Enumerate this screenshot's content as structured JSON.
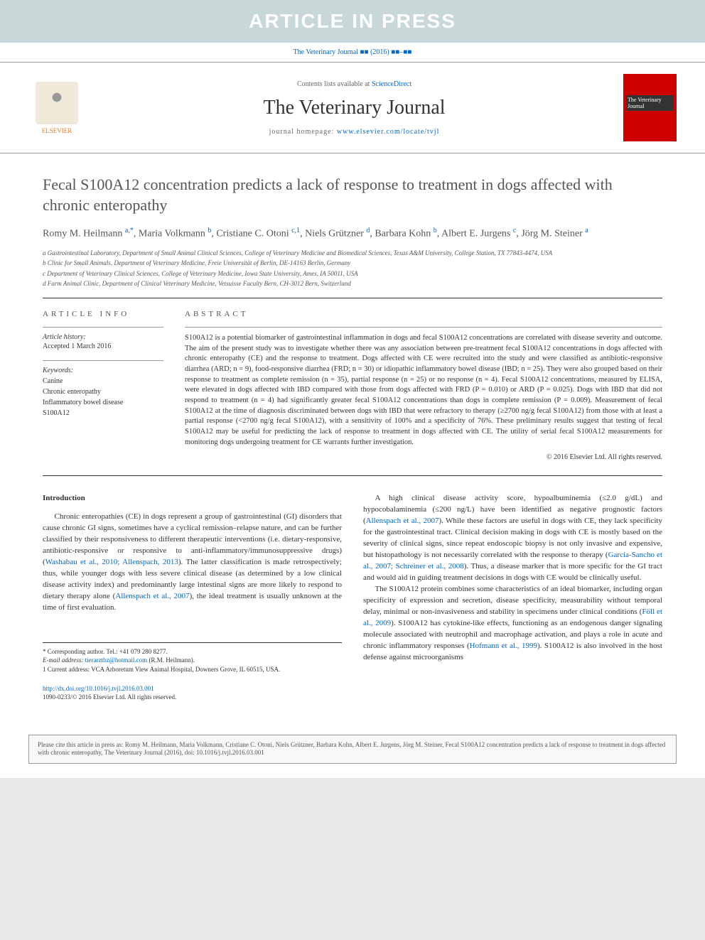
{
  "banner": "ARTICLE IN PRESS",
  "citation_top": "The Veterinary Journal ■■ (2016) ■■–■■",
  "header": {
    "contents_prefix": "Contents lists available at ",
    "contents_link": "ScienceDirect",
    "journal_name": "The Veterinary Journal",
    "homepage_prefix": "journal homepage: ",
    "homepage_link": "www.elsevier.com/locate/tvjl",
    "elsevier_label": "ELSEVIER",
    "cover_line1": "The",
    "cover_line2": "Veterinary",
    "cover_line3": "Journal"
  },
  "title": "Fecal S100A12 concentration predicts a lack of response to treatment in dogs affected with chronic enteropathy",
  "authors_html": "Romy M. Heilmann <sup>a,*</sup>, Maria Volkmann <sup>b</sup>, Cristiane C. Otoni <sup>c,1</sup>, Niels Grützner <sup>d</sup>, Barbara Kohn <sup>b</sup>, Albert E. Jurgens <sup>c</sup>, Jörg M. Steiner <sup>a</sup>",
  "affiliations": {
    "a": "a Gastrointestinal Laboratory, Department of Small Animal Clinical Sciences, College of Veterinary Medicine and Biomedical Sciences, Texas A&M University, College Station, TX 77843-4474, USA",
    "b": "b Clinic for Small Animals, Department of Veterinary Medicine, Freie Universität of Berlin, DE-14163 Berlin, Germany",
    "c": "c Department of Veterinary Clinical Sciences, College of Veterinary Medicine, Iowa State University, Ames, IA 50011, USA",
    "d": "d Farm Animal Clinic, Department of Clinical Veterinary Medicine, Vetsuisse Faculty Bern, CH-3012 Bern, Switzerland"
  },
  "info_label": "ARTICLE INFO",
  "abstract_label": "ABSTRACT",
  "history": {
    "label": "Article history:",
    "accepted": "Accepted 1 March 2016"
  },
  "keywords": {
    "label": "Keywords:",
    "items": "Canine\nChronic enteropathy\nInflammatory bowel disease\nS100A12"
  },
  "abstract": "S100A12 is a potential biomarker of gastrointestinal inflammation in dogs and fecal S100A12 concentrations are correlated with disease severity and outcome. The aim of the present study was to investigate whether there was any association between pre-treatment fecal S100A12 concentrations in dogs affected with chronic enteropathy (CE) and the response to treatment. Dogs affected with CE were recruited into the study and were classified as antibiotic-responsive diarrhea (ARD; n = 9), food-responsive diarrhea (FRD; n = 30) or idiopathic inflammatory bowel disease (IBD; n = 25). They were also grouped based on their response to treatment as complete remission (n = 35), partial response (n = 25) or no response (n = 4). Fecal S100A12 concentrations, measured by ELISA, were elevated in dogs affected with IBD compared with those from dogs affected with FRD (P = 0.010) or ARD (P = 0.025). Dogs with IBD that did not respond to treatment (n = 4) had significantly greater fecal S100A12 concentrations than dogs in complete remission (P = 0.009). Measurement of fecal S100A12 at the time of diagnosis discriminated between dogs with IBD that were refractory to therapy (≥2700 ng/g fecal S100A12) from those with at least a partial response (<2700 ng/g fecal S100A12), with a sensitivity of 100% and a specificity of 76%. These preliminary results suggest that testing of fecal S100A12 may be useful for predicting the lack of response to treatment in dogs affected with CE. The utility of serial fecal S100A12 measurements for monitoring dogs undergoing treatment for CE warrants further investigation.",
  "copyright": "© 2016 Elsevier Ltd. All rights reserved.",
  "intro_head": "Introduction",
  "col1_p1": "Chronic enteropathies (CE) in dogs represent a group of gastrointestinal (GI) disorders that cause chronic GI signs, sometimes have a cyclical remission–relapse nature, and can be further classified by their responsiveness to different therapeutic interventions (i.e. dietary-responsive, antibiotic-responsive or responsive to anti-inflammatory/immunosuppressive drugs) (",
  "col1_ref1": "Washabau et al., 2010; Allenspach, 2013",
  "col1_p1b": "). The latter classification is made retrospectively; thus, while younger dogs with less severe clinical disease (as determined by a low clinical disease activity index) and predominantly large intestinal signs are more likely to respond to dietary therapy alone (",
  "col1_ref2": "Allenspach et al., 2007",
  "col1_p1c": "), the ideal treatment is usually unknown at the time of first evaluation.",
  "col2_p1a": "A high clinical disease activity score, hypoalbuminemia (≤2.0 g/dL) and hypocobalaminemia (≤200 ng/L) have been identified as negative prognostic factors (",
  "col2_ref1": "Allenspach et al., 2007",
  "col2_p1b": "). While these factors are useful in dogs with CE, they lack specificity for the gastrointestinal tract. Clinical decision making in dogs with CE is mostly based on the severity of clinical signs, since repeat endoscopic biopsy is not only invasive and expensive, but histopathology is not necessarily correlated with the response to therapy (",
  "col2_ref2": "García-Sancho et al., 2007; Schreiner et al., 2008",
  "col2_p1c": "). Thus, a disease marker that is more specific for the GI tract and would aid in guiding treatment decisions in dogs with CE would be clinically useful.",
  "col2_p2a": "The S100A12 protein combines some characteristics of an ideal biomarker, including organ specificity of expression and secretion, disease specificity, measurability without temporal delay, minimal or non-invasiveness and stability in specimens under clinical conditions (",
  "col2_ref3": "Föll et al., 2009",
  "col2_p2b": "). S100A12 has cytokine-like effects, functioning as an endogenous danger signaling molecule associated with neutrophil and macrophage activation, and plays a role in acute and chronic inflammatory responses (",
  "col2_ref4": "Hofmann et al., 1999",
  "col2_p2c": "). S100A12 is also involved in the host defense against microorganisms",
  "footnotes": {
    "corr": "* Corresponding author. Tel.: +41 079 280 8277.",
    "email_label": "E-mail address: ",
    "email": "tierarztbz@hotmail.com",
    "email_suffix": " (R.M. Heilmann).",
    "addr": "1 Current address: VCA Arboretum View Animal Hospital, Downers Grove, IL 60515, USA."
  },
  "doi": {
    "link": "http://dx.doi.org/10.1016/j.tvjl.2016.03.001",
    "issn": "1090-0233/© 2016 Elsevier Ltd. All rights reserved."
  },
  "cite_box": "Please cite this article in press as: Romy M. Heilmann, Maria Volkmann, Cristiane C. Otoni, Niels Grützner, Barbara Kohn, Albert E. Jurgens, Jörg M. Steiner, Fecal S100A12 concentration predicts a lack of response to treatment in dogs affected with chronic enteropathy, The Veterinary Journal (2016), doi: 10.1016/j.tvjl.2016.03.001"
}
